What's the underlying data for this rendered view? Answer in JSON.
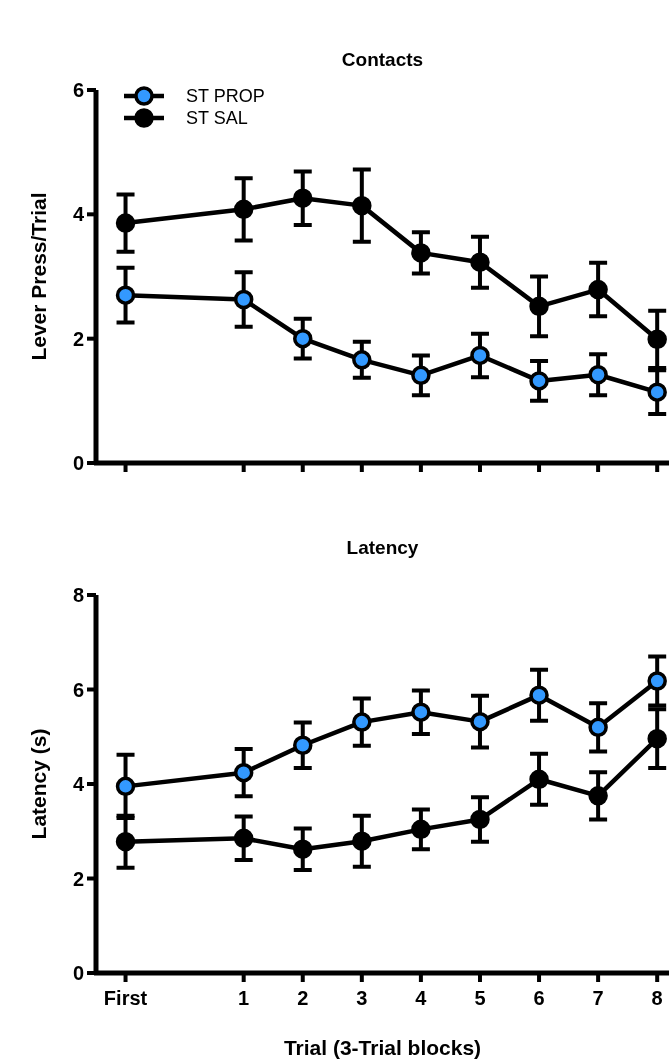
{
  "chart_data": [
    {
      "type": "line",
      "title": "Contacts",
      "ylabel": "Lever Press/Trial",
      "x": [
        -1,
        1,
        2,
        3,
        4,
        5,
        6,
        7,
        8
      ],
      "xlim": [
        -1.5,
        8.2
      ],
      "xticks": [
        {
          "value": -1,
          "label": null
        },
        {
          "value": 1,
          "label": null
        },
        {
          "value": 2,
          "label": null
        },
        {
          "value": 3,
          "label": null
        },
        {
          "value": 4,
          "label": null
        },
        {
          "value": 5,
          "label": null
        },
        {
          "value": 6,
          "label": null
        },
        {
          "value": 7,
          "label": null
        },
        {
          "value": 8,
          "label": null
        }
      ],
      "ylim": [
        0,
        6
      ],
      "yticks": [
        0,
        2,
        4,
        6
      ],
      "tick_labels": "y",
      "legend": "top left",
      "marker": "circle",
      "grid": false,
      "series": [
        {
          "name": "ST PROP",
          "color": "#3399ff",
          "values": [
            2.7,
            2.63,
            2.0,
            1.66,
            1.41,
            1.73,
            1.32,
            1.42,
            1.14
          ],
          "errors": [
            0.44,
            0.44,
            0.32,
            0.29,
            0.32,
            0.35,
            0.32,
            0.33,
            0.35
          ]
        },
        {
          "name": "ST SAL",
          "color": "#000000",
          "values": [
            3.86,
            4.08,
            4.26,
            4.14,
            3.38,
            3.23,
            2.52,
            2.79,
            1.99
          ],
          "errors": [
            0.46,
            0.5,
            0.43,
            0.58,
            0.33,
            0.41,
            0.48,
            0.43,
            0.46
          ]
        }
      ]
    },
    {
      "type": "line",
      "title": "Latency",
      "ylabel": "Latency (s)",
      "xlabel": "Trial (3-Trial blocks)",
      "x": [
        -1,
        1,
        2,
        3,
        4,
        5,
        6,
        7,
        8
      ],
      "xlim": [
        -1.5,
        8.2
      ],
      "xticks": [
        {
          "value": -1,
          "label": "First"
        },
        1,
        2,
        3,
        4,
        5,
        6,
        7,
        8
      ],
      "ylim": [
        0,
        8
      ],
      "yticks": [
        0,
        2,
        4,
        6,
        8
      ],
      "marker": "circle",
      "grid": false,
      "series": [
        {
          "color": "#3399ff",
          "values": [
            3.95,
            4.24,
            4.82,
            5.31,
            5.52,
            5.32,
            5.88,
            5.2,
            6.18
          ],
          "errors": [
            0.67,
            0.5,
            0.48,
            0.5,
            0.46,
            0.55,
            0.54,
            0.51,
            0.52
          ]
        },
        {
          "color": "#000000",
          "values": [
            2.78,
            2.85,
            2.62,
            2.79,
            3.04,
            3.25,
            4.1,
            3.75,
            4.96
          ],
          "errors": [
            0.55,
            0.46,
            0.44,
            0.54,
            0.42,
            0.47,
            0.54,
            0.5,
            0.62
          ]
        }
      ]
    }
  ]
}
